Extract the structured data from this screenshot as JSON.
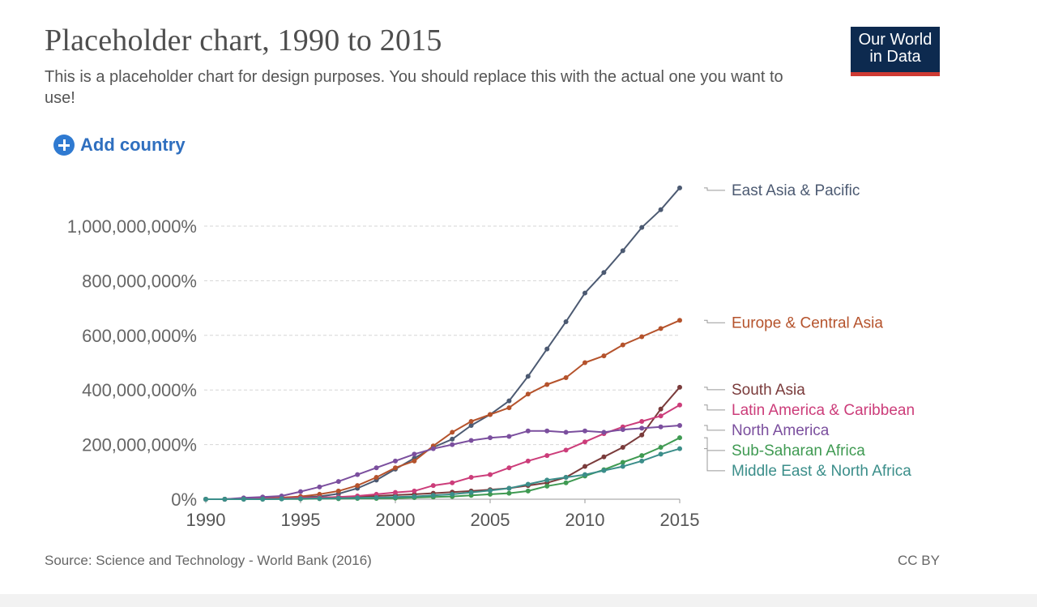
{
  "header": {
    "title": "Placeholder chart, 1990 to 2015",
    "subtitle": "This is a placeholder chart for design purposes. You should replace this with the actual one you want to use!",
    "logo_line1": "Our World",
    "logo_line2": "in Data",
    "add_country": "Add country"
  },
  "footer": {
    "source": "Source: Science and Technology - World Bank (2016)",
    "license": "CC BY"
  },
  "chart_data": {
    "type": "line",
    "x": [
      1990,
      1991,
      1992,
      1993,
      1994,
      1995,
      1996,
      1997,
      1998,
      1999,
      2000,
      2001,
      2002,
      2003,
      2004,
      2005,
      2006,
      2007,
      2008,
      2009,
      2010,
      2011,
      2012,
      2013,
      2014,
      2015
    ],
    "xlim": [
      1990,
      2015
    ],
    "ylim": [
      0,
      1140000000
    ],
    "x_ticks": [
      1990,
      1995,
      2000,
      2005,
      2010,
      2015
    ],
    "x_tick_labels": [
      "1990",
      "1995",
      "2000",
      "2005",
      "2010",
      "2015"
    ],
    "y_ticks": [
      0,
      200000000,
      400000000,
      600000000,
      800000000,
      1000000000
    ],
    "y_tick_labels": [
      "0%",
      "200,000,000%",
      "400,000,000%",
      "600,000,000%",
      "800,000,000%",
      "1,000,000,000%"
    ],
    "grid": "horizontal dashed",
    "legend": "right, labels at line ends",
    "series": [
      {
        "name": "East Asia & Pacific",
        "color": "#4c5a72",
        "values": [
          0,
          0,
          2000000,
          3000000,
          5000000,
          8000000,
          10000000,
          20000000,
          40000000,
          70000000,
          110000000,
          150000000,
          190000000,
          220000000,
          270000000,
          310000000,
          360000000,
          450000000,
          550000000,
          650000000,
          755000000,
          830000000,
          910000000,
          995000000,
          1060000000,
          1140000000
        ]
      },
      {
        "name": "Europe & Central Asia",
        "color": "#b5532c",
        "values": [
          0,
          0,
          3000000,
          4000000,
          6000000,
          10000000,
          18000000,
          30000000,
          50000000,
          80000000,
          115000000,
          140000000,
          195000000,
          245000000,
          285000000,
          310000000,
          335000000,
          385000000,
          420000000,
          445000000,
          500000000,
          525000000,
          565000000,
          595000000,
          625000000,
          655000000
        ]
      },
      {
        "name": "South Asia",
        "color": "#7a3b3b",
        "values": [
          0,
          0,
          1000000,
          2000000,
          3000000,
          4000000,
          6000000,
          8000000,
          10000000,
          12000000,
          15000000,
          18000000,
          22000000,
          26000000,
          30000000,
          35000000,
          40000000,
          50000000,
          60000000,
          80000000,
          120000000,
          155000000,
          190000000,
          235000000,
          330000000,
          410000000
        ]
      },
      {
        "name": "Latin America & Caribbean",
        "color": "#cc3d7a",
        "values": [
          0,
          0,
          1000000,
          2000000,
          3000000,
          5000000,
          6000000,
          8000000,
          12000000,
          18000000,
          25000000,
          30000000,
          50000000,
          60000000,
          80000000,
          90000000,
          115000000,
          140000000,
          160000000,
          180000000,
          210000000,
          240000000,
          265000000,
          285000000,
          305000000,
          345000000
        ]
      },
      {
        "name": "North America",
        "color": "#7b4f9e",
        "values": [
          0,
          0,
          5000000,
          8000000,
          12000000,
          28000000,
          45000000,
          65000000,
          90000000,
          115000000,
          140000000,
          165000000,
          185000000,
          200000000,
          215000000,
          225000000,
          230000000,
          250000000,
          250000000,
          245000000,
          250000000,
          245000000,
          255000000,
          260000000,
          265000000,
          270000000
        ]
      },
      {
        "name": "Sub-Saharan Africa",
        "color": "#3f9a52",
        "values": [
          0,
          0,
          0,
          0,
          1000000,
          1000000,
          2000000,
          2000000,
          3000000,
          3000000,
          4000000,
          6000000,
          8000000,
          10000000,
          14000000,
          18000000,
          22000000,
          30000000,
          48000000,
          60000000,
          85000000,
          108000000,
          135000000,
          160000000,
          190000000,
          225000000
        ]
      },
      {
        "name": "Middle East & North Africa",
        "color": "#3b8e8a",
        "values": [
          0,
          0,
          0,
          0,
          1000000,
          2000000,
          3000000,
          4000000,
          5000000,
          6000000,
          8000000,
          10000000,
          14000000,
          18000000,
          25000000,
          32000000,
          40000000,
          55000000,
          70000000,
          80000000,
          90000000,
          105000000,
          120000000,
          140000000,
          165000000,
          185000000
        ]
      }
    ]
  }
}
